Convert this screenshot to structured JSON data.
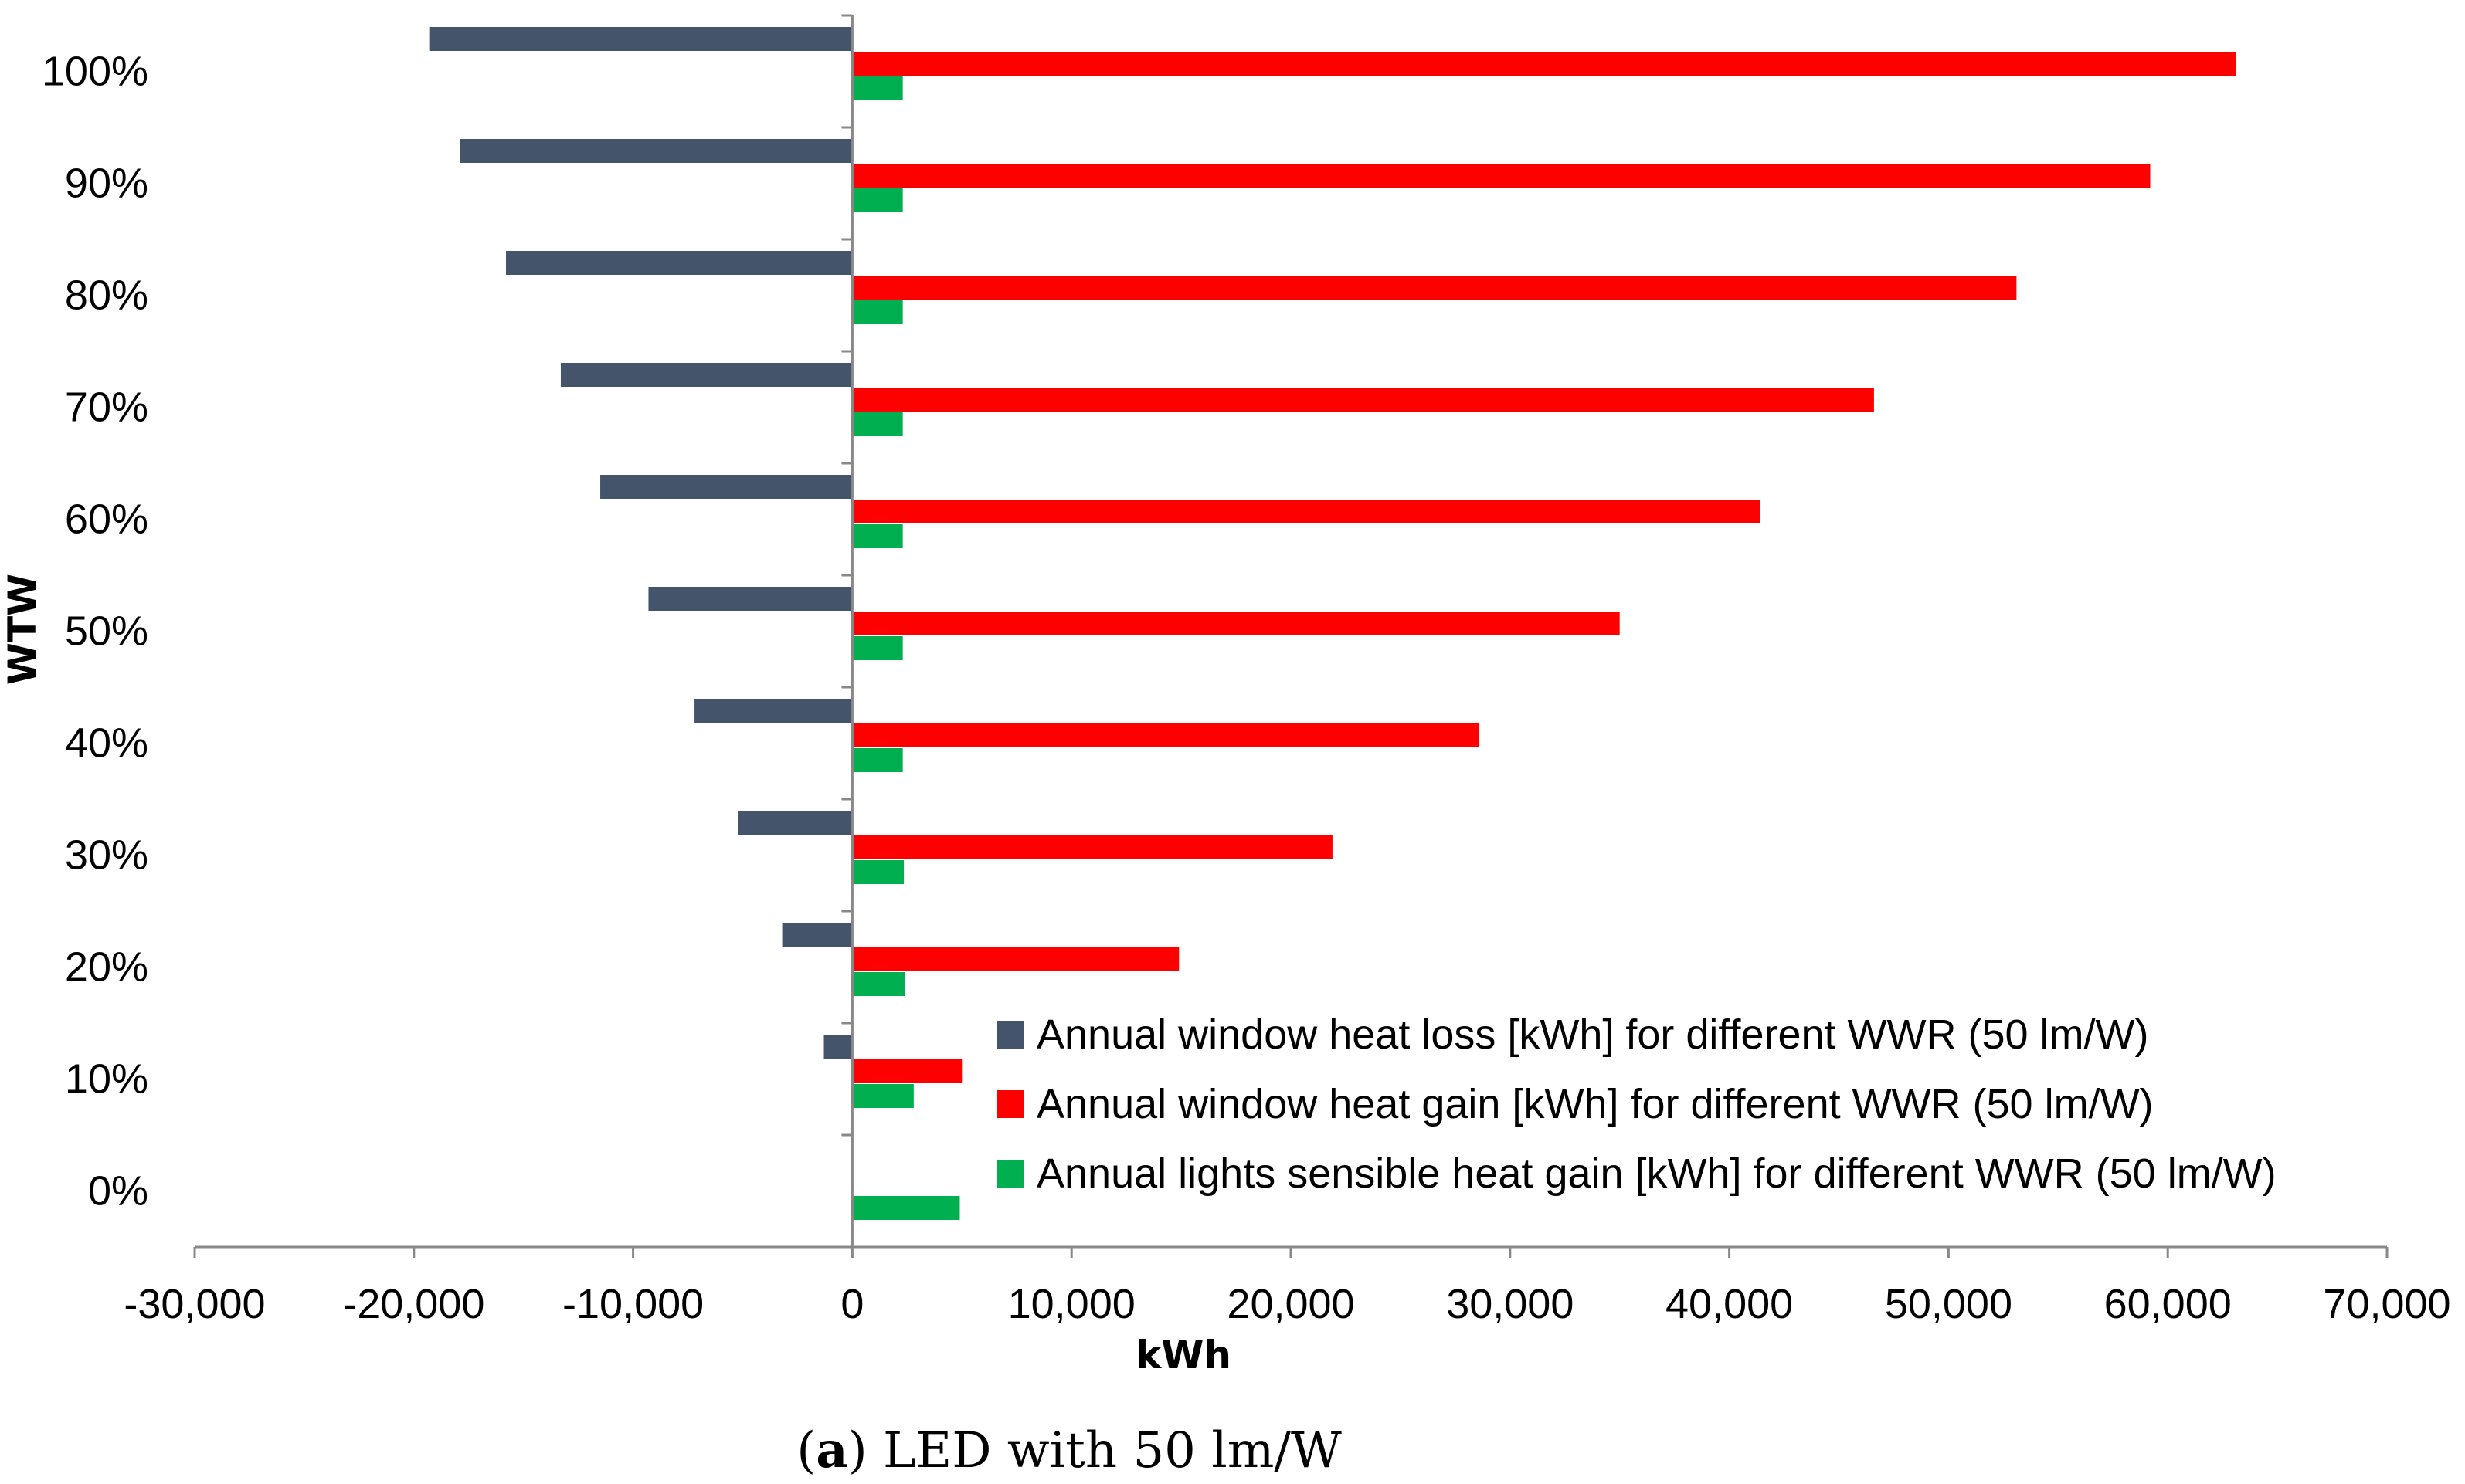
{
  "chart_data": {
    "type": "bar",
    "orientation": "horizontal",
    "categories": [
      "0%",
      "10%",
      "20%",
      "30%",
      "40%",
      "50%",
      "60%",
      "70%",
      "80%",
      "90%",
      "100%"
    ],
    "series": [
      {
        "name": "Annual window heat loss [kWh] for different WWR (50 lm/W)",
        "color": "#44546a",
        "values": [
          0,
          -1300,
          -3200,
          -5200,
          -7200,
          -9300,
          -11500,
          -13300,
          -15800,
          -17900,
          -19300
        ]
      },
      {
        "name": "Annual window heat gain [kWh] for different WWR (50 lm/W)",
        "color": "#ff0000",
        "values": [
          0,
          5000,
          14900,
          21900,
          28600,
          35000,
          41400,
          46600,
          53100,
          59200,
          63100
        ]
      },
      {
        "name": "Annual lights sensible heat gain [kWh] for different WWR (50 lm/W)",
        "color": "#00b050",
        "values": [
          4900,
          2800,
          2400,
          2350,
          2300,
          2300,
          2300,
          2300,
          2300,
          2300,
          2300
        ]
      }
    ],
    "xlim": [
      -30000,
      70000
    ],
    "xticks": [
      -30000,
      -20000,
      -10000,
      0,
      10000,
      20000,
      30000,
      40000,
      50000,
      60000,
      70000
    ],
    "xtick_labels": [
      "-30,000",
      "-20,000",
      "-10,000",
      "0",
      "10,000",
      "20,000",
      "30,000",
      "40,000",
      "50,000",
      "60,000",
      "70,000"
    ],
    "xlabel": "kWh",
    "ylabel": "WTW",
    "grid": false,
    "legend_position": "bottom-right"
  },
  "caption": {
    "prefix": "(",
    "letter": "a",
    "text": ") LED with 50 lm/W"
  },
  "colors": {
    "axis": "#888888"
  }
}
